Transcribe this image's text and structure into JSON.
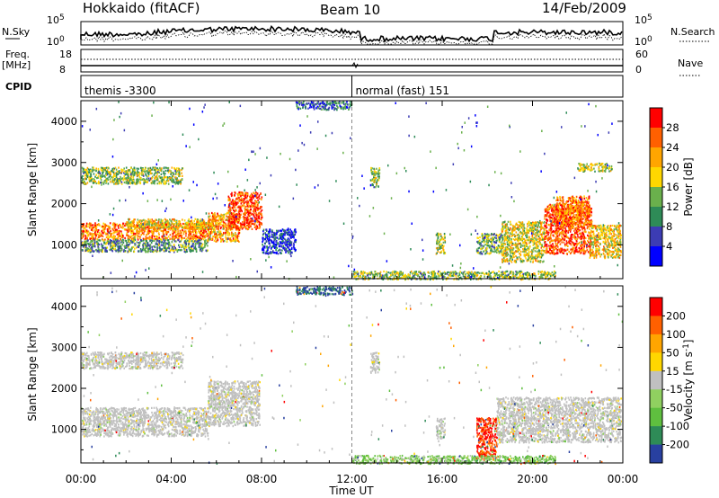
{
  "header": {
    "station": "Hokkaido (fitACF)",
    "beam": "Beam 10",
    "date": "14/Feb/2009"
  },
  "strip_labels": {
    "nsky": "N.Sky",
    "nsearch": "N.Search",
    "freq_line1": "Freq.",
    "freq_line2": "[MHz]",
    "nave": "Nave",
    "cpid": "CPID"
  },
  "strip_ticks": {
    "noise_top": "10^5",
    "noise_bottom": "10^0",
    "freq_top": "18",
    "freq_bottom": "8",
    "nave_top": "60",
    "nave_bottom": "0"
  },
  "cpid_segments": [
    {
      "start_hour": 0,
      "label": "themis -3300"
    },
    {
      "start_hour": 12,
      "label": "normal (fast) 151"
    }
  ],
  "chart_data": [
    {
      "type": "heatmap",
      "title": "",
      "xlabel": "Time UT",
      "ylabel": "Slant Range [km]",
      "xlim_hours": [
        0,
        24
      ],
      "ylim_km": [
        180,
        4500
      ],
      "x_ticks": [
        "00:00",
        "04:00",
        "08:00",
        "12:00",
        "16:00",
        "20:00",
        "00:00"
      ],
      "y_ticks": [
        1000,
        2000,
        3000,
        4000
      ],
      "colorbar": {
        "label": "Power [dB]",
        "ticks": [
          "4",
          "8",
          "12",
          "16",
          "20",
          "24",
          "28"
        ],
        "colors": [
          "#0000ff",
          "#3c3cb4",
          "#2e8b57",
          "#6ab04c",
          "#ffd700",
          "#ffa500",
          "#ff6000",
          "#ff0000"
        ]
      },
      "scatter_regions": [
        {
          "t0": 0.0,
          "t1": 5.6,
          "r0": 1150,
          "r1": 1550,
          "level": 0.75
        },
        {
          "t0": 0.0,
          "t1": 5.6,
          "r0": 850,
          "r1": 1150,
          "level": 0.35
        },
        {
          "t0": 0.0,
          "t1": 4.5,
          "r0": 2500,
          "r1": 2900,
          "level": 0.45
        },
        {
          "t0": 2.0,
          "t1": 6.0,
          "r0": 1400,
          "r1": 1650,
          "level": 0.6
        },
        {
          "t0": 5.6,
          "t1": 7.0,
          "r0": 1100,
          "r1": 1800,
          "level": 0.7
        },
        {
          "t0": 6.5,
          "t1": 8.0,
          "r0": 1400,
          "r1": 2300,
          "level": 0.88
        },
        {
          "t0": 8.0,
          "t1": 9.5,
          "r0": 800,
          "r1": 1400,
          "level": 0.15
        },
        {
          "t0": 9.5,
          "t1": 12.0,
          "r0": 4300,
          "r1": 4500,
          "level": 0.25
        },
        {
          "t0": 12.8,
          "t1": 13.2,
          "r0": 2400,
          "r1": 2900,
          "level": 0.45
        },
        {
          "t0": 15.7,
          "t1": 16.1,
          "r0": 800,
          "r1": 1300,
          "level": 0.5
        },
        {
          "t0": 17.5,
          "t1": 18.6,
          "r0": 800,
          "r1": 1300,
          "level": 0.4
        },
        {
          "t0": 18.6,
          "t1": 20.5,
          "r0": 600,
          "r1": 1600,
          "level": 0.55
        },
        {
          "t0": 20.5,
          "t1": 22.6,
          "r0": 800,
          "r1": 2000,
          "level": 0.85
        },
        {
          "t0": 21.0,
          "t1": 22.5,
          "r0": 1500,
          "r1": 2200,
          "level": 0.75
        },
        {
          "t0": 22.5,
          "t1": 23.9,
          "r0": 700,
          "r1": 1500,
          "level": 0.6
        },
        {
          "t0": 12.0,
          "t1": 21.0,
          "r0": 180,
          "r1": 380,
          "level": 0.45
        },
        {
          "t0": 22.0,
          "t1": 23.5,
          "r0": 2800,
          "r1": 3000,
          "level": 0.5
        }
      ]
    },
    {
      "type": "heatmap",
      "title": "",
      "xlabel": "Time UT",
      "ylabel": "Slant Range [km]",
      "xlim_hours": [
        0,
        24
      ],
      "ylim_km": [
        180,
        4500
      ],
      "x_ticks": [
        "00:00",
        "04:00",
        "08:00",
        "12:00",
        "16:00",
        "20:00",
        "00:00"
      ],
      "y_ticks": [
        1000,
        2000,
        3000,
        4000
      ],
      "colorbar": {
        "label": "Velocity [m s^-1]",
        "ticks": [
          "200",
          "100",
          "50",
          "15",
          "-15",
          "-50",
          "-100",
          "-200"
        ],
        "colors": [
          "#2840a0",
          "#2e8b57",
          "#5fbf3f",
          "#90d060",
          "#c0c0c0",
          "#ffd700",
          "#ffa500",
          "#ff6000",
          "#ff0000"
        ]
      },
      "scatter_regions": [
        {
          "t0": 0.0,
          "t1": 5.6,
          "r0": 850,
          "r1": 1550,
          "level": 0.5
        },
        {
          "t0": 0.0,
          "t1": 4.5,
          "r0": 2500,
          "r1": 2900,
          "level": 0.5
        },
        {
          "t0": 5.6,
          "t1": 7.9,
          "r0": 1100,
          "r1": 2200,
          "level": 0.5
        },
        {
          "t0": 9.5,
          "t1": 12.0,
          "r0": 4300,
          "r1": 4500,
          "level": 0.9
        },
        {
          "t0": 12.8,
          "t1": 13.2,
          "r0": 2400,
          "r1": 2900,
          "level": 0.5
        },
        {
          "t0": 15.7,
          "t1": 16.1,
          "r0": 800,
          "r1": 1300,
          "level": 0.5
        },
        {
          "t0": 17.5,
          "t1": 18.4,
          "r0": 300,
          "r1": 1300,
          "level": 0.1
        },
        {
          "t0": 18.4,
          "t1": 23.9,
          "r0": 700,
          "r1": 1800,
          "level": 0.5
        },
        {
          "t0": 12.0,
          "t1": 21.0,
          "r0": 180,
          "r1": 380,
          "level": 0.65
        }
      ]
    }
  ]
}
